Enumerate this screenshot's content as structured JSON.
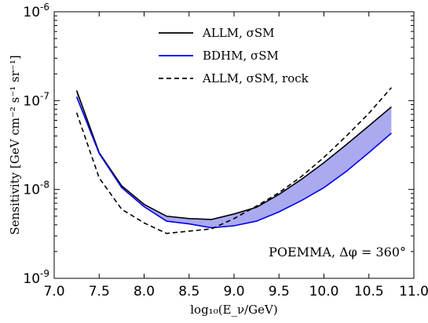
{
  "chart_data": {
    "type": "line",
    "title": "",
    "xlabel": "log₁₀(E_ν/GeV)",
    "ylabel": "Sensitivity [GeV cm⁻² s⁻¹ sr⁻¹]",
    "xlim": [
      7.0,
      11.0
    ],
    "ylim": [
      1e-09,
      1e-06
    ],
    "yscale": "log",
    "grid": false,
    "legend_position": "top-center",
    "x_ticks": [
      "7.0",
      "7.5",
      "8.0",
      "8.5",
      "9.0",
      "9.5",
      "10.0",
      "10.5",
      "11.0"
    ],
    "y_ticks": [
      {
        "base": "10",
        "exp": "-9"
      },
      {
        "base": "10",
        "exp": "-8"
      },
      {
        "base": "10",
        "exp": "-7"
      },
      {
        "base": "10",
        "exp": "-6"
      }
    ],
    "series": [
      {
        "name": "ALLM, σSM",
        "style": "solid",
        "color": "#000000",
        "x": [
          7.25,
          7.5,
          7.75,
          8.0,
          8.25,
          8.5,
          8.75,
          9.0,
          9.25,
          9.5,
          9.75,
          10.0,
          10.25,
          10.5,
          10.75
        ],
        "y": [
          1.3e-07,
          2.6e-08,
          1.1e-08,
          6.8e-09,
          5e-09,
          4.7e-09,
          4.6e-09,
          5.3e-09,
          6.3e-09,
          8.8e-09,
          1.3e-08,
          2e-08,
          3.2e-08,
          5.2e-08,
          8.5e-08
        ]
      },
      {
        "name": "BDHM, σSM",
        "style": "solid",
        "color": "#0000ee",
        "x": [
          7.25,
          7.5,
          7.75,
          8.0,
          8.25,
          8.5,
          8.75,
          9.0,
          9.25,
          9.5,
          9.75,
          10.0,
          10.25,
          10.5,
          10.75
        ],
        "y": [
          1.1e-07,
          2.55e-08,
          1.05e-08,
          6.4e-09,
          4.4e-09,
          4.1e-09,
          3.7e-09,
          3.9e-09,
          4.4e-09,
          5.6e-09,
          7.5e-09,
          1.05e-08,
          1.6e-08,
          2.6e-08,
          4.3e-08
        ]
      },
      {
        "name": "ALLM, σSM, rock",
        "style": "dashed",
        "color": "#000000",
        "x": [
          7.25,
          7.5,
          7.75,
          8.0,
          8.25,
          8.5,
          8.75,
          9.0,
          9.25,
          9.5,
          9.75,
          10.0,
          10.25,
          10.5,
          10.75
        ],
        "y": [
          7.3e-08,
          1.35e-08,
          6e-09,
          4.2e-09,
          3.2e-09,
          3.4e-09,
          3.6e-09,
          4.7e-09,
          6.5e-09,
          9.2e-09,
          1.4e-08,
          2.3e-08,
          4e-08,
          7.2e-08,
          1.4e-07
        ]
      }
    ],
    "shaded_band": {
      "between": [
        "ALLM, σSM",
        "BDHM, σSM"
      ],
      "color": "#aaaaf0"
    },
    "annotation": "POEMMA,  Δφ = 360°"
  }
}
